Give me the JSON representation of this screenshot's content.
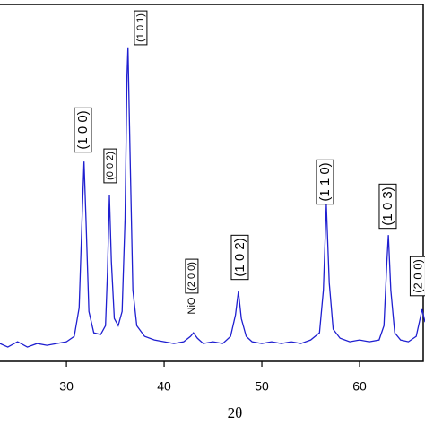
{
  "chart_data": {
    "type": "line",
    "x_label": "2θ",
    "x": [
      23.2,
      24,
      25,
      26,
      27,
      28,
      29,
      30,
      30.8,
      31.3,
      31.6,
      31.8,
      32.0,
      32.3,
      32.8,
      33.5,
      34.0,
      34.2,
      34.4,
      34.6,
      34.9,
      35.3,
      35.7,
      36.0,
      36.2,
      36.3,
      36.5,
      36.8,
      37.2,
      38,
      39,
      40,
      41,
      42,
      42.7,
      43.0,
      43.4,
      44,
      45,
      46,
      46.8,
      47.3,
      47.6,
      47.9,
      48.4,
      49,
      50,
      51,
      52,
      53,
      54,
      55,
      55.9,
      56.3,
      56.6,
      56.9,
      57.3,
      58,
      59,
      60,
      61,
      62,
      62.5,
      62.8,
      62.95,
      63.2,
      63.6,
      64.2,
      65,
      65.8,
      66.2,
      66.4,
      66.7
    ],
    "series": [
      {
        "color": "#1f1fd0",
        "values": [
          5,
          4,
          5.5,
          4,
          5,
          4.5,
          5,
          5.5,
          7,
          15,
          40,
          56,
          40,
          14,
          8,
          7.5,
          10,
          25,
          46.5,
          28,
          12,
          10,
          14,
          40,
          80,
          88,
          60,
          20,
          10,
          7,
          6,
          5.5,
          5,
          5.5,
          7,
          8,
          6.5,
          5,
          5.5,
          5,
          7,
          13,
          19.6,
          12,
          7,
          5.5,
          5,
          5.5,
          5,
          5.5,
          5,
          6,
          8,
          20,
          44,
          22,
          9,
          6.5,
          5.5,
          6,
          5.5,
          6,
          10,
          28,
          35.4,
          20,
          8,
          6,
          5.5,
          7,
          12,
          14.6,
          11
        ]
      }
    ],
    "xlim": [
      23.2,
      66.7
    ],
    "xticks": [
      30,
      40,
      50,
      60
    ],
    "ylim": [
      0,
      100
    ],
    "annotations": [
      {
        "text": "(1 0 0)",
        "boxed": true
      },
      {
        "text": "(0 0 2)",
        "boxed": true
      },
      {
        "text": "(1 0 1)",
        "boxed": true
      },
      {
        "text": "NiO",
        "boxed": false
      },
      {
        "text": "(2 0 0)",
        "boxed": true
      },
      {
        "text": "(1 0 2)",
        "boxed": true
      },
      {
        "text": "(1 1 0)",
        "boxed": true
      },
      {
        "text": "(1 0 3)",
        "boxed": true
      },
      {
        "text": "(2 0 0)",
        "boxed": true
      }
    ]
  }
}
